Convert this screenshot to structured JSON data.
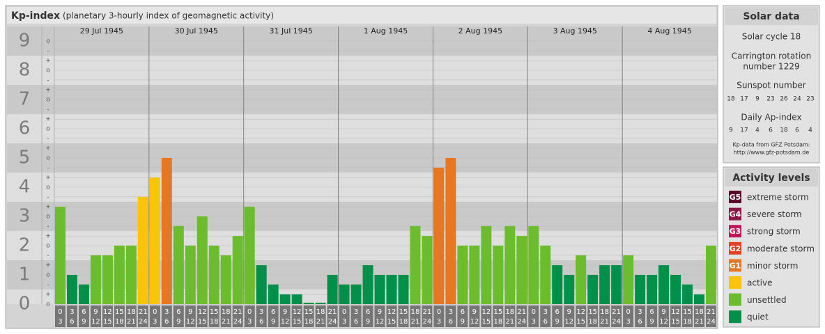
{
  "chart_data": {
    "type": "bar",
    "title": "Kp-index",
    "subtitle": "(planetary 3-hourly index of geomagnetic activity)",
    "days": [
      "29 Jul 1945",
      "30 Jul 1945",
      "31 Jul 1945",
      "1 Aug 1945",
      "2 Aug 1945",
      "3 Aug 1945",
      "4 Aug 1945"
    ],
    "hours_start": [
      0,
      3,
      6,
      9,
      12,
      15,
      18,
      21
    ],
    "hours_end": [
      3,
      6,
      9,
      12,
      15,
      18,
      21,
      24
    ],
    "values": [
      3.33,
      1,
      0.67,
      1.67,
      1.67,
      2,
      2,
      3.67,
      4.33,
      5,
      2.67,
      2,
      3,
      2,
      1.67,
      2.33,
      3.33,
      1.33,
      0.67,
      0.33,
      0.33,
      0,
      0,
      1,
      0.67,
      0.67,
      1.33,
      1,
      1,
      1,
      2.67,
      2.33,
      4.67,
      5,
      2,
      2,
      2.67,
      2,
      2.67,
      2.33,
      2.67,
      2,
      1.33,
      1,
      1.67,
      1,
      1.33,
      1.33,
      1.67,
      1,
      1,
      1.33,
      1,
      0.67,
      0.33,
      2
    ],
    "colors": [
      "#6cbd2b",
      "#00904a",
      "#00904a",
      "#6cbd2b",
      "#6cbd2b",
      "#6cbd2b",
      "#6cbd2b",
      "#fcc30b",
      "#fcc30b",
      "#e87722",
      "#6cbd2b",
      "#6cbd2b",
      "#6cbd2b",
      "#6cbd2b",
      "#6cbd2b",
      "#6cbd2b",
      "#6cbd2b",
      "#00904a",
      "#00904a",
      "#00904a",
      "#00904a",
      "#00904a",
      "#00904a",
      "#00904a",
      "#00904a",
      "#00904a",
      "#00904a",
      "#00904a",
      "#00904a",
      "#00904a",
      "#6cbd2b",
      "#6cbd2b",
      "#e87722",
      "#e87722",
      "#6cbd2b",
      "#6cbd2b",
      "#6cbd2b",
      "#6cbd2b",
      "#6cbd2b",
      "#6cbd2b",
      "#6cbd2b",
      "#6cbd2b",
      "#00904a",
      "#00904a",
      "#6cbd2b",
      "#00904a",
      "#00904a",
      "#00904a",
      "#6cbd2b",
      "#00904a",
      "#00904a",
      "#00904a",
      "#00904a",
      "#00904a",
      "#00904a",
      "#6cbd2b"
    ],
    "ylim": [
      0,
      9.5
    ],
    "yticks": [
      0,
      1,
      2,
      3,
      4,
      5,
      6,
      7,
      8,
      9
    ],
    "subticks": [
      {
        "value": 0,
        "label": "o"
      },
      {
        "value": 0.33,
        "label": "+"
      },
      {
        "value": 0.67,
        "label": "-"
      },
      {
        "value": 1,
        "label": "o"
      },
      {
        "value": 1.33,
        "label": "+"
      },
      {
        "value": 1.67,
        "label": "-"
      },
      {
        "value": 2,
        "label": "o"
      },
      {
        "value": 2.33,
        "label": "+"
      },
      {
        "value": 2.67,
        "label": "-"
      },
      {
        "value": 3,
        "label": "o"
      },
      {
        "value": 3.33,
        "label": "+"
      },
      {
        "value": 3.67,
        "label": "-"
      },
      {
        "value": 4,
        "label": "o"
      },
      {
        "value": 4.33,
        "label": "+"
      },
      {
        "value": 4.67,
        "label": "-"
      },
      {
        "value": 5,
        "label": "o"
      },
      {
        "value": 5.33,
        "label": "+"
      },
      {
        "value": 5.67,
        "label": "-"
      },
      {
        "value": 6,
        "label": "o"
      },
      {
        "value": 6.33,
        "label": "+"
      },
      {
        "value": 6.67,
        "label": "-"
      },
      {
        "value": 7,
        "label": "o"
      },
      {
        "value": 7.33,
        "label": "+"
      },
      {
        "value": 7.67,
        "label": "-"
      },
      {
        "value": 8,
        "label": "o"
      },
      {
        "value": 8.33,
        "label": "+"
      },
      {
        "value": 8.67,
        "label": "-"
      },
      {
        "value": 9,
        "label": "o"
      }
    ],
    "grid": true
  },
  "solar_data": {
    "title": "Solar data",
    "cycle": "Solar cycle 18",
    "carrington": [
      "Carrington rotation",
      "number 1229"
    ],
    "sunspot_title": "Sunspot number",
    "sunspot": [
      18,
      17,
      9,
      23,
      26,
      24,
      23
    ],
    "ap_title": "Daily Ap-index",
    "ap": [
      9,
      17,
      4,
      6,
      18,
      6,
      4
    ],
    "source": [
      "Kp-data from GFZ Potsdam:",
      "http://www.gfz-potsdam.de"
    ]
  },
  "activity_levels": {
    "title": "Activity levels",
    "items": [
      {
        "code": "G5",
        "label": "extreme storm",
        "color": "#5a0a2a"
      },
      {
        "code": "G4",
        "label": "severe storm",
        "color": "#8a1747"
      },
      {
        "code": "G3",
        "label": "strong storm",
        "color": "#c2185b"
      },
      {
        "code": "G2",
        "label": "moderate storm",
        "color": "#e2401f"
      },
      {
        "code": "G1",
        "label": "minor storm",
        "color": "#e87722"
      },
      {
        "label": "active",
        "color": "#fcc30b"
      },
      {
        "label": "unsettled",
        "color": "#6cbd2b"
      },
      {
        "label": "quiet",
        "color": "#00904a"
      }
    ]
  }
}
